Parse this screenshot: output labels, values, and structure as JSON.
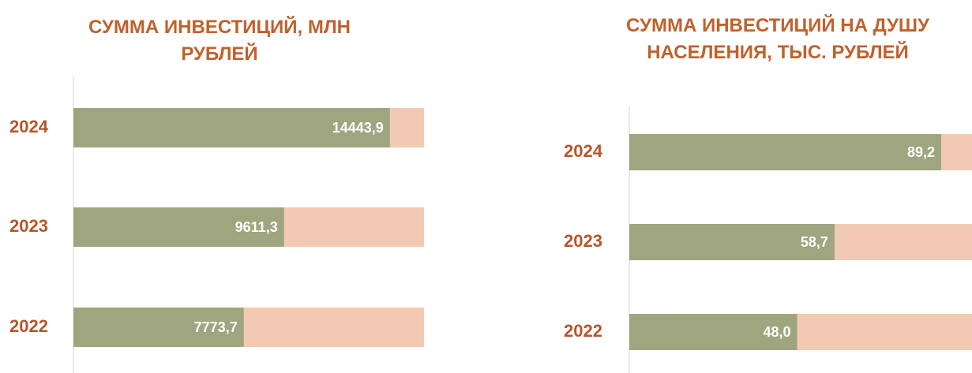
{
  "chart_data": [
    {
      "type": "barh",
      "title": "СУММА ИНВЕСТИЦИЙ, МЛН РУБЛЕЙ",
      "categories": [
        "2024",
        "2023",
        "2022"
      ],
      "values": [
        14443.9,
        9611.3,
        7773.7
      ],
      "value_labels": [
        "14443,9",
        "9611,3",
        "7773,7"
      ],
      "color": "#9fa67f",
      "track_color": "#f2cab3",
      "xlim": [
        0,
        16000
      ]
    },
    {
      "type": "barh",
      "title": "СУММА ИНВЕСТИЦИЙ НА ДУШУ НАСЕЛЕНИЯ, ТЫС. РУБЛЕЙ",
      "categories": [
        "2024",
        "2023",
        "2022"
      ],
      "values": [
        89.2,
        58.7,
        48.0
      ],
      "value_labels": [
        "89,2",
        "58,7",
        "48,0"
      ],
      "color": "#9fa67f",
      "track_color": "#f2cab3",
      "xlim": [
        0,
        98
      ]
    }
  ]
}
